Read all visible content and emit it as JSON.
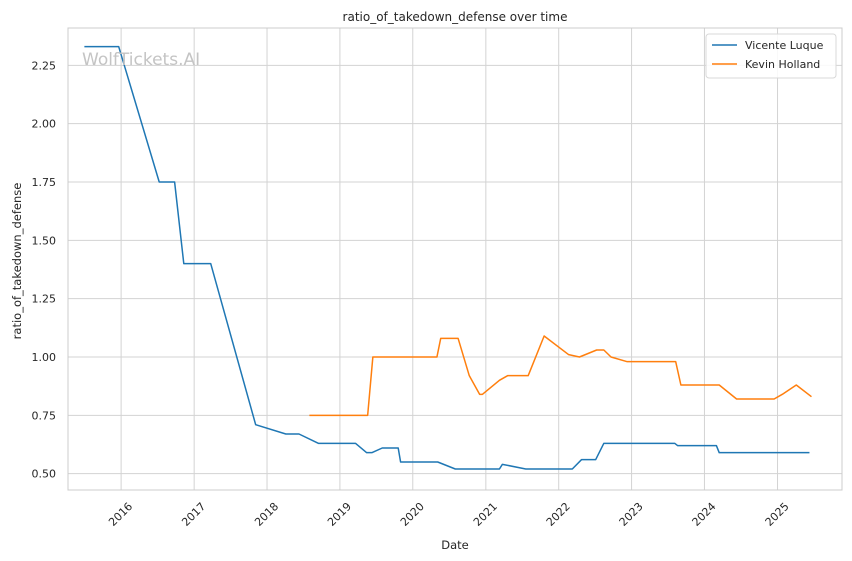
{
  "chart_data": {
    "type": "line",
    "title": "ratio_of_takedown_defense over time",
    "xlabel": "Date",
    "ylabel": "ratio_of_takedown_defense",
    "watermark": "WolfTickets.AI",
    "ylim": [
      0.43,
      2.41
    ],
    "xlim": [
      "2015-04-10",
      "2025-11-20"
    ],
    "yticks": [
      0.5,
      0.75,
      1.0,
      1.25,
      1.5,
      1.75,
      2.0,
      2.25
    ],
    "ytick_labels": [
      "0.50",
      "0.75",
      "1.00",
      "1.25",
      "1.50",
      "1.75",
      "2.00",
      "2.25"
    ],
    "xticks": [
      "2016-01-01",
      "2017-01-01",
      "2018-01-01",
      "2019-01-01",
      "2020-01-01",
      "2021-01-01",
      "2022-01-01",
      "2023-01-01",
      "2024-01-01",
      "2025-01-01"
    ],
    "xtick_labels": [
      "2016",
      "2017",
      "2018",
      "2019",
      "2020",
      "2021",
      "2022",
      "2023",
      "2024",
      "2025"
    ],
    "grid": true,
    "legend": "top-right",
    "series": [
      {
        "name": "Vicente Luque",
        "color": "#1f77b4",
        "x": [
          "2015-07-01",
          "2015-12-20",
          "2016-07-10",
          "2016-09-25",
          "2016-11-10",
          "2017-03-25",
          "2017-11-05",
          "2018-04-05",
          "2018-06-10",
          "2018-09-15",
          "2019-03-20",
          "2019-05-15",
          "2019-06-10",
          "2019-08-01",
          "2019-10-20",
          "2019-11-01",
          "2020-05-05",
          "2020-08-01",
          "2021-03-10",
          "2021-03-25",
          "2021-07-20",
          "2022-03-10",
          "2022-04-25",
          "2022-07-05",
          "2022-08-15",
          "2023-08-05",
          "2023-08-20",
          "2024-03-01",
          "2024-03-15",
          "2025-06-10"
        ],
        "y": [
          2.33,
          2.33,
          1.75,
          1.75,
          1.4,
          1.4,
          0.71,
          0.67,
          0.67,
          0.63,
          0.63,
          0.59,
          0.59,
          0.61,
          0.61,
          0.55,
          0.55,
          0.52,
          0.52,
          0.54,
          0.52,
          0.52,
          0.56,
          0.56,
          0.63,
          0.63,
          0.62,
          0.62,
          0.59,
          0.59
        ]
      },
      {
        "name": "Kevin Holland",
        "color": "#ff7f0e",
        "x": [
          "2018-08-01",
          "2019-05-20",
          "2019-06-15",
          "2020-05-01",
          "2020-05-20",
          "2020-08-15",
          "2020-10-10",
          "2020-12-01",
          "2020-12-15",
          "2021-03-10",
          "2021-04-20",
          "2021-08-01",
          "2021-10-20",
          "2022-02-20",
          "2022-04-15",
          "2022-07-10",
          "2022-08-15",
          "2022-09-20",
          "2022-12-10",
          "2023-08-10",
          "2023-09-05",
          "2024-03-15",
          "2024-06-10",
          "2024-12-15",
          "2025-01-25",
          "2025-04-05",
          "2025-06-20"
        ],
        "y": [
          0.75,
          0.75,
          1.0,
          1.0,
          1.08,
          1.08,
          0.92,
          0.84,
          0.84,
          0.9,
          0.92,
          0.92,
          1.09,
          1.01,
          1.0,
          1.03,
          1.03,
          1.0,
          0.98,
          0.98,
          0.88,
          0.88,
          0.82,
          0.82,
          0.84,
          0.88,
          0.83
        ]
      }
    ]
  }
}
